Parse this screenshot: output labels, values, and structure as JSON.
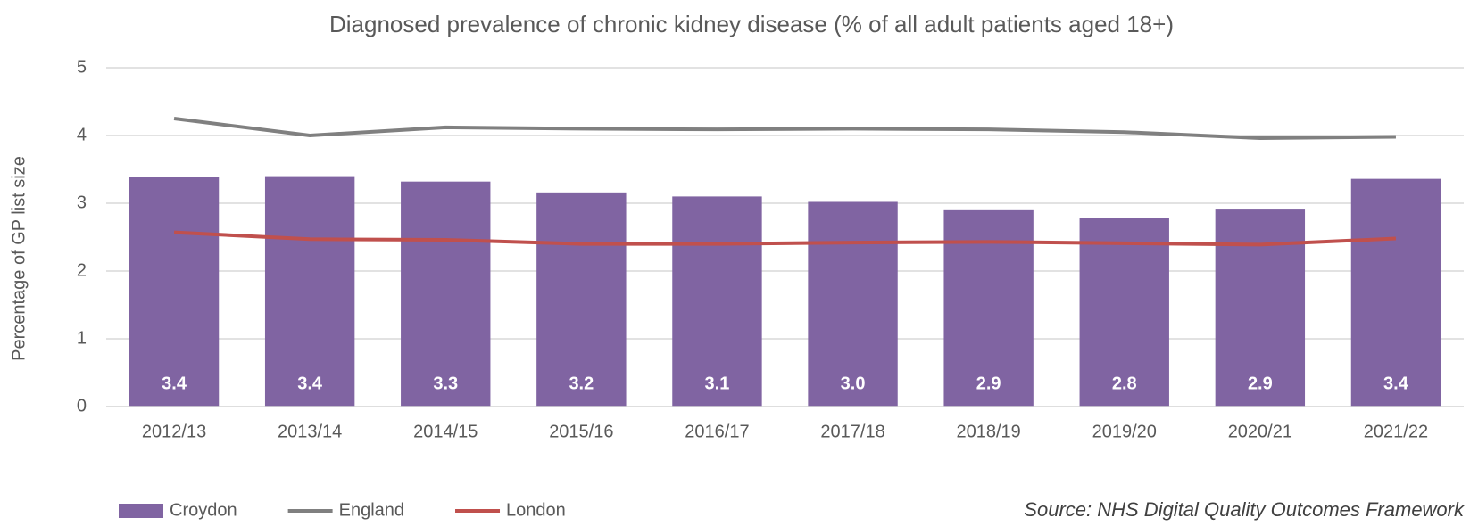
{
  "chart_data": {
    "type": "bar",
    "title": "Diagnosed prevalence of chronic kidney disease (% of all adult patients aged 18+)",
    "y_label": "Percentage of GP list size",
    "source": "Source: NHS Digital Quality Outcomes Framework",
    "categories": [
      "2012/13",
      "2013/14",
      "2014/15",
      "2015/16",
      "2016/17",
      "2017/18",
      "2018/19",
      "2019/20",
      "2020/21",
      "2021/22"
    ],
    "series": [
      {
        "name": "Croydon",
        "type": "bar",
        "color": "#8064a2",
        "values": [
          3.39,
          3.4,
          3.32,
          3.16,
          3.1,
          3.02,
          2.91,
          2.78,
          2.92,
          3.36
        ],
        "value_labels": [
          "3.4",
          "3.4",
          "3.3",
          "3.2",
          "3.1",
          "3.0",
          "2.9",
          "2.8",
          "2.9",
          "3.4"
        ]
      },
      {
        "name": "England",
        "type": "line",
        "color": "#808080",
        "values": [
          4.25,
          4.0,
          4.12,
          4.1,
          4.09,
          4.1,
          4.09,
          4.05,
          3.96,
          3.98
        ]
      },
      {
        "name": "London",
        "type": "line",
        "color": "#c0504d",
        "values": [
          2.57,
          2.47,
          2.46,
          2.4,
          2.4,
          2.42,
          2.43,
          2.41,
          2.39,
          2.48
        ]
      }
    ],
    "ylim": [
      0,
      5
    ],
    "yticks": [
      0,
      1,
      2,
      3,
      4,
      5
    ],
    "grid": true,
    "legend": "bottom-left"
  }
}
